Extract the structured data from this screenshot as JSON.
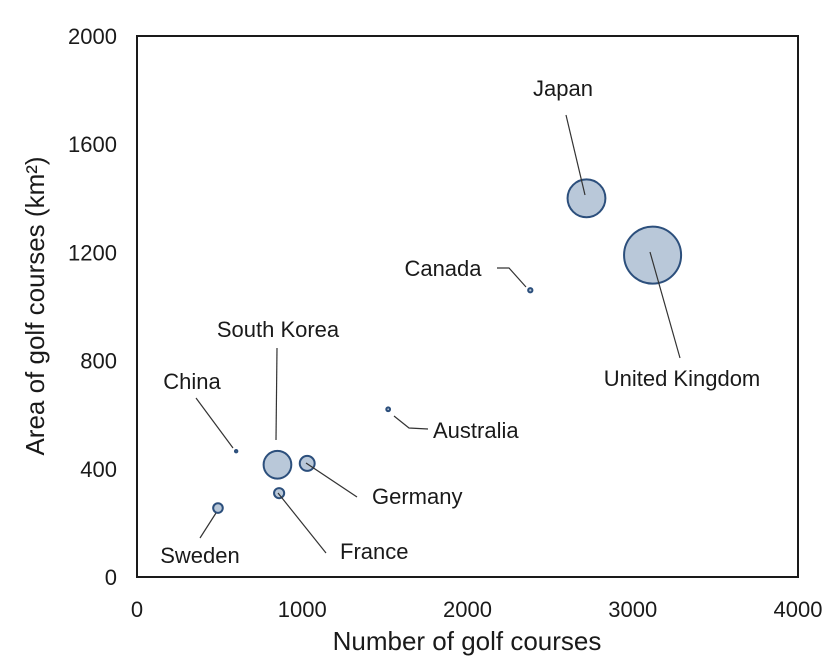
{
  "chart_data": {
    "type": "scatter",
    "subtype": "bubble",
    "title": "",
    "xlabel": "Number of golf courses",
    "ylabel": "Area of golf courses (km²)",
    "xlim": [
      0,
      4000
    ],
    "ylim": [
      0,
      2000
    ],
    "xticks": [
      "0",
      "1000",
      "2000",
      "3000",
      "4000"
    ],
    "yticks": [
      "0",
      "400",
      "800",
      "1200",
      "1600",
      "2000"
    ],
    "grid": false,
    "bubble_color": "#8ea6c2",
    "bubble_edge_color": "#2c4f7c",
    "points": [
      {
        "label": "South Korea",
        "x": 850,
        "y": 415,
        "r": 520
      },
      {
        "label": "China",
        "x": 600,
        "y": 465,
        "r": 45
      },
      {
        "label": "Sweden",
        "x": 490,
        "y": 255,
        "r": 180
      },
      {
        "label": "Germany",
        "x": 1030,
        "y": 420,
        "r": 280
      },
      {
        "label": "France",
        "x": 860,
        "y": 310,
        "r": 190
      },
      {
        "label": "Australia",
        "x": 1520,
        "y": 620,
        "r": 70
      },
      {
        "label": "Canada",
        "x": 2380,
        "y": 1060,
        "r": 80
      },
      {
        "label": "Japan",
        "x": 2720,
        "y": 1400,
        "r": 710
      },
      {
        "label": "United Kingdom",
        "x": 3120,
        "y": 1190,
        "r": 1070
      }
    ]
  }
}
